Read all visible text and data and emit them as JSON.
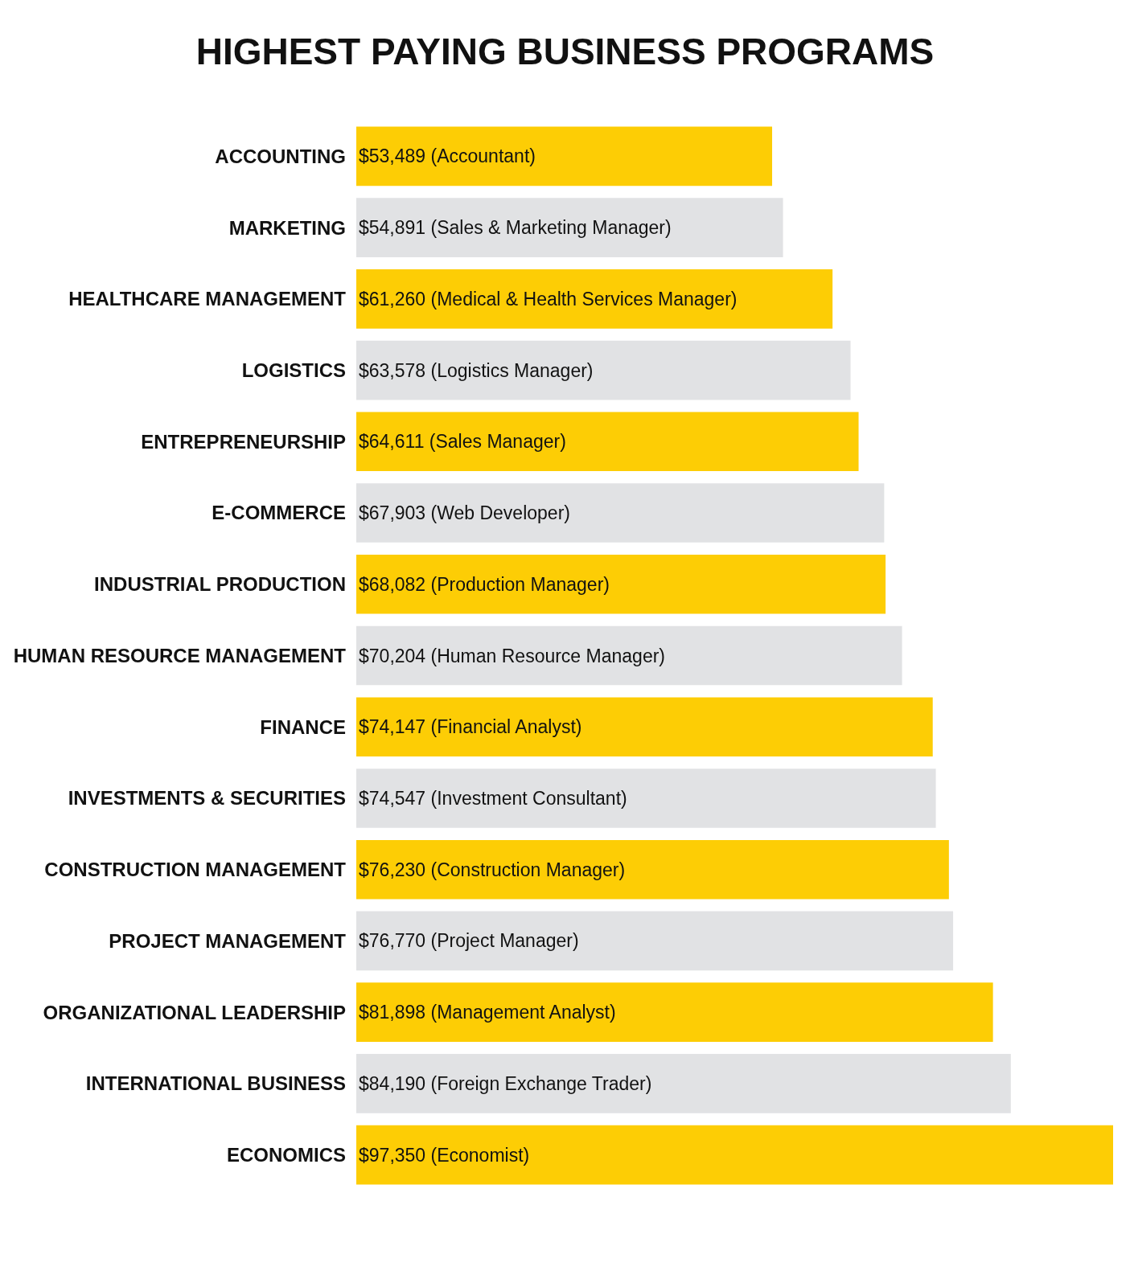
{
  "chart_data": {
    "type": "bar",
    "orientation": "horizontal",
    "title": "HIGHEST PAYING BUSINESS PROGRAMS",
    "categories": [
      "ACCOUNTING",
      "MARKETING",
      "HEALTHCARE MANAGEMENT",
      "LOGISTICS",
      "ENTREPRENEURSHIP",
      "E-COMMERCE",
      "INDUSTRIAL PRODUCTION",
      "HUMAN RESOURCE MANAGEMENT",
      "FINANCE",
      "INVESTMENTS & SECURITIES",
      "CONSTRUCTION MANAGEMENT",
      "PROJECT MANAGEMENT",
      "ORGANIZATIONAL LEADERSHIP",
      "INTERNATIONAL BUSINESS",
      "ECONOMICS"
    ],
    "values": [
      53489,
      54891,
      61260,
      63578,
      64611,
      67903,
      68082,
      70204,
      74147,
      74547,
      76230,
      76770,
      81898,
      84190,
      97350
    ],
    "value_labels": [
      "$53,489 (Accountant)",
      "$54,891 (Sales & Marketing Manager)",
      "$61,260 (Medical & Health Services Manager)",
      "$63,578 (Logistics Manager)",
      "$64,611 (Sales Manager)",
      "$67,903 (Web Developer)",
      "$68,082 (Production Manager)",
      "$70,204 (Human Resource Manager)",
      "$74,147 (Financial Analyst)",
      "$74,547 (Investment Consultant)",
      "$76,230 (Construction Manager)",
      "$76,770 (Project Manager)",
      "$81,898 (Management Analyst)",
      "$84,190 (Foreign Exchange Trader)",
      "$97,350 (Economist)"
    ],
    "colors": [
      "#fdcd05",
      "#e1e2e4",
      "#fdcd05",
      "#e1e2e4",
      "#fdcd05",
      "#e1e2e4",
      "#fdcd05",
      "#e1e2e4",
      "#fdcd05",
      "#e1e2e4",
      "#fdcd05",
      "#e1e2e4",
      "#fdcd05",
      "#e1e2e4",
      "#fdcd05"
    ],
    "xlim": [
      0,
      97350
    ],
    "tick_labels": "y",
    "legend": false
  }
}
